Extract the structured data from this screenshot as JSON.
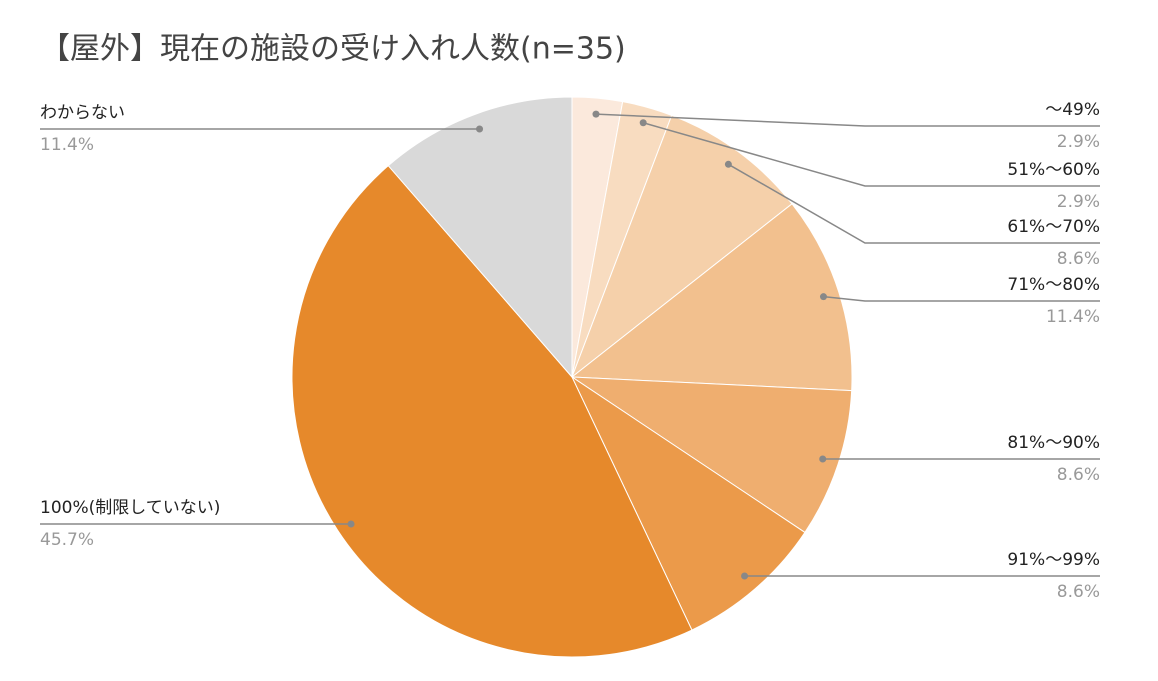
{
  "chart_data": {
    "type": "pie",
    "title": "【屋外】現在の施設の受け入れ人数(n=35)",
    "categories": [
      "～49%",
      "51%～60%",
      "61%～70%",
      "71%～80%",
      "81%～90%",
      "91%～99%",
      "100%(制限していない)",
      "わからない"
    ],
    "values": [
      2.9,
      2.9,
      8.6,
      11.4,
      8.6,
      8.6,
      45.7,
      11.4
    ],
    "value_labels": [
      "2.9%",
      "2.9%",
      "8.6%",
      "11.4%",
      "8.6%",
      "8.6%",
      "45.7%",
      "11.4%"
    ],
    "colors": [
      "#fbe9dc",
      "#f8dcc0",
      "#f5d0aa",
      "#f2c08e",
      "#efae6f",
      "#eb9a4a",
      "#e6892b",
      "#d9d9d9"
    ]
  }
}
